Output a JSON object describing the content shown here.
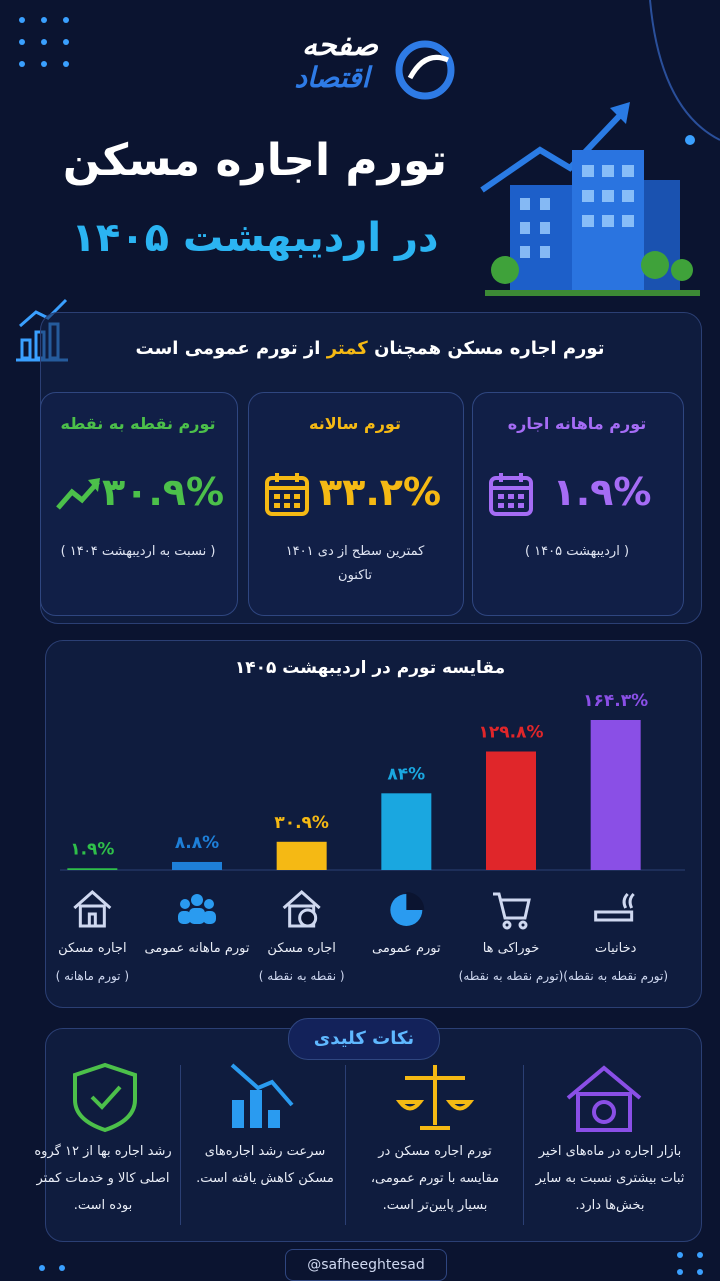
{
  "header": {
    "logo_top": "صفحه",
    "logo_bottom": "اقتصاد",
    "title": "تورم اجاره مسکن",
    "subtitle": "در اردیبهشت ۱۴۰۵"
  },
  "summary": {
    "headline_start": "تورم اجاره مسکن همچنان",
    "headline_highlight": "کمتر",
    "headline_end": "از تورم عمومی است",
    "cards": [
      {
        "title": "تورم ماهانه اجاره",
        "value": "۱.۹%",
        "note": "( اردیبهشت ۱۴۰۵ )"
      },
      {
        "title": "تورم سالانه",
        "value": "۳۳.۲%",
        "note": "کمترین سطح از دی ۱۴۰۱ تاکنون"
      },
      {
        "title": "تورم نقطه به نقطه",
        "value": "۳۰.۹%",
        "note": "( نسبت به اردیبهشت ۱۴۰۴ )"
      }
    ]
  },
  "chart_data": {
    "type": "bar",
    "title": "مقایسه تورم در اردیبهشت ۱۴۰۵",
    "categories": [
      "اجاره مسکن",
      "تورم ماهانه عمومی",
      "اجاره مسکن",
      "تورم عمومی",
      "خوراکی ها",
      "دخانیات"
    ],
    "category_notes": [
      "( تورم ماهانه )",
      null,
      "( نقطه به نقطه )",
      null,
      "(تورم نقطه به نقطه)",
      "(تورم نقطه به نقطه)"
    ],
    "values": [
      1.9,
      8.8,
      30.9,
      84,
      129.8,
      164.3
    ],
    "value_labels": [
      "۱.۹%",
      "۸.۸%",
      "۳۰.۹%",
      "۸۴%",
      "۱۲۹.۸%",
      "۱۶۴.۳%"
    ],
    "colors": [
      "#2fbf4a",
      "#1e7fd8",
      "#f5b914",
      "#1aa7e0",
      "#e0262a",
      "#8a4fe6"
    ]
  },
  "key_points": {
    "title": "نکات کلیدی",
    "items": [
      "بازار اجاره در ماه‌های اخیر ثبات بیشتری نسبت به سایر بخش‌ها دارد.",
      "تورم اجاره مسکن در مقایسه با تورم عمومی، بسیار پایین‌تر است.",
      "سرعت رشد اجاره‌های مسکن کاهش یافته است.",
      "رشد اجاره بها از ۱۲ گروه اصلی کالا و خدمات کمتر بوده است."
    ]
  },
  "footer": {
    "handle": "@safheeghtesad"
  }
}
